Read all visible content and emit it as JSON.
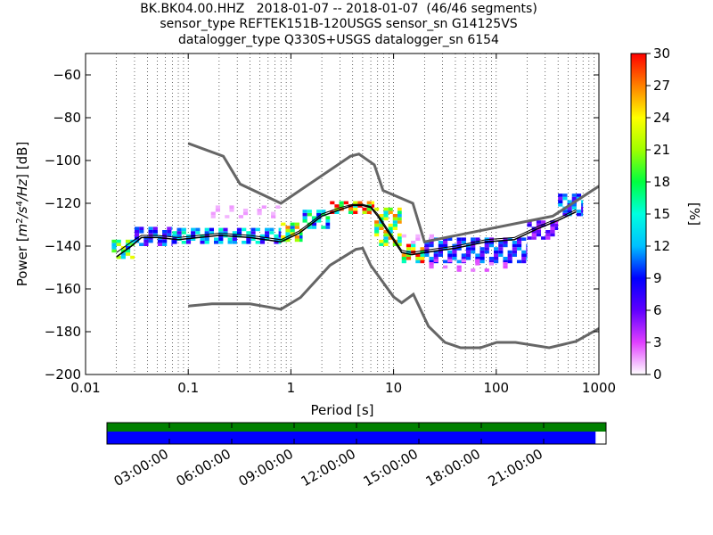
{
  "header": {
    "line1": "BK.BK04.00.HHZ   2018-01-07 -- 2018-01-07  (46/46 segments)",
    "line2": "sensor_type REFTEK151B-120USGS sensor_sn G14125VS",
    "line3": "datalogger_type Q330S+USGS datalogger_sn 6154"
  },
  "colors": {
    "noise_model": "#666666",
    "mean_line": "#000000",
    "mode_line": "#000000",
    "timeline_top": "#008000",
    "timeline_bottom": "#0000ff"
  },
  "chart_data": {
    "type": "heatmap",
    "title": "BK.BK04.00.HHZ   2018-01-07 -- 2018-01-07  (46/46 segments)",
    "xlabel": "Period [s]",
    "ylabel_parts": [
      "Power [",
      "m",
      "2",
      "/s",
      "4",
      "/",
      "Hz",
      "] [dB]"
    ],
    "x_scale": "log",
    "xlim": [
      0.01,
      1000
    ],
    "ylim": [
      -200,
      -50
    ],
    "x_ticks": [
      {
        "value": 0.01,
        "label": "0.01"
      },
      {
        "value": 0.1,
        "label": "0.1"
      },
      {
        "value": 1,
        "label": "1"
      },
      {
        "value": 10,
        "label": "10"
      },
      {
        "value": 100,
        "label": "100"
      },
      {
        "value": 1000,
        "label": "1000"
      }
    ],
    "y_ticks": [
      {
        "value": -60,
        "label": "−60"
      },
      {
        "value": -80,
        "label": "−80"
      },
      {
        "value": -100,
        "label": "−100"
      },
      {
        "value": -120,
        "label": "−120"
      },
      {
        "value": -140,
        "label": "−140"
      },
      {
        "value": -160,
        "label": "−160"
      },
      {
        "value": -180,
        "label": "−180"
      },
      {
        "value": -200,
        "label": "−200"
      }
    ],
    "grid": "vertical dotted",
    "colorbar": {
      "label": "[%]",
      "range": [
        0,
        30
      ],
      "ticks": [
        {
          "value": 0,
          "label": "0"
        },
        {
          "value": 3,
          "label": "3"
        },
        {
          "value": 6,
          "label": "6"
        },
        {
          "value": 9,
          "label": "9"
        },
        {
          "value": 12,
          "label": "12"
        },
        {
          "value": 15,
          "label": "15"
        },
        {
          "value": 18,
          "label": "18"
        },
        {
          "value": 21,
          "label": "21"
        },
        {
          "value": 24,
          "label": "24"
        },
        {
          "value": 27,
          "label": "27"
        },
        {
          "value": 30,
          "label": "30"
        }
      ]
    },
    "noise_models": [
      {
        "points": [
          [
            0.1,
            -92
          ],
          [
            0.22,
            -98
          ],
          [
            0.32,
            -111
          ],
          [
            0.8,
            -120
          ],
          [
            3.8,
            -98
          ],
          [
            4.6,
            -97
          ],
          [
            6.5,
            -102
          ],
          [
            7.9,
            -114
          ],
          [
            15.4,
            -120
          ],
          [
            20,
            -138
          ],
          [
            354.8,
            -126
          ],
          [
            1000,
            -112
          ]
        ]
      },
      {
        "points": [
          [
            0.1,
            -168
          ],
          [
            0.17,
            -167
          ],
          [
            0.4,
            -167
          ],
          [
            0.8,
            -169.5
          ],
          [
            1.24,
            -164
          ],
          [
            2.4,
            -149
          ],
          [
            4.3,
            -141.5
          ],
          [
            5,
            -141
          ],
          [
            6,
            -149
          ],
          [
            10,
            -163.7
          ],
          [
            12,
            -166.5
          ],
          [
            15.6,
            -162.5
          ],
          [
            21.9,
            -177.5
          ],
          [
            31.6,
            -185
          ],
          [
            45,
            -187.5
          ],
          [
            70,
            -187.5
          ],
          [
            101,
            -185
          ],
          [
            154,
            -185
          ],
          [
            328,
            -187.5
          ],
          [
            600,
            -184.5
          ],
          [
            1000,
            -178.5
          ]
        ]
      }
    ],
    "mode": {
      "points": [
        [
          0.02,
          -145
        ],
        [
          0.028,
          -140
        ],
        [
          0.035,
          -136
        ],
        [
          0.05,
          -136
        ],
        [
          0.08,
          -137
        ],
        [
          0.2,
          -135
        ],
        [
          0.4,
          -136
        ],
        [
          0.8,
          -138
        ],
        [
          1.2,
          -134
        ],
        [
          2,
          -126
        ],
        [
          3,
          -123
        ],
        [
          4,
          -121
        ],
        [
          5,
          -121
        ],
        [
          6,
          -122
        ],
        [
          7,
          -126
        ],
        [
          9,
          -134
        ],
        [
          12,
          -143
        ],
        [
          15,
          -144
        ],
        [
          20,
          -143
        ],
        [
          40,
          -141
        ],
        [
          80,
          -138
        ],
        [
          150,
          -137
        ],
        [
          250,
          -132
        ],
        [
          400,
          -128
        ],
        [
          600,
          -124
        ]
      ]
    },
    "mean": {
      "points": [
        [
          0.02,
          -143
        ],
        [
          0.028,
          -138
        ],
        [
          0.035,
          -135
        ],
        [
          0.05,
          -135
        ],
        [
          0.08,
          -136
        ],
        [
          0.2,
          -134
        ],
        [
          0.4,
          -135
        ],
        [
          0.8,
          -137
        ],
        [
          1.2,
          -133
        ],
        [
          2,
          -125
        ],
        [
          3,
          -122
        ],
        [
          4,
          -120.5
        ],
        [
          5,
          -120.5
        ],
        [
          6,
          -121.5
        ],
        [
          7,
          -125
        ],
        [
          9,
          -133
        ],
        [
          12,
          -142
        ],
        [
          15,
          -143
        ],
        [
          20,
          -142
        ],
        [
          40,
          -140
        ],
        [
          80,
          -137
        ],
        [
          150,
          -136
        ],
        [
          250,
          -131
        ],
        [
          400,
          -127
        ],
        [
          600,
          -123
        ]
      ]
    },
    "density_bands": [
      {
        "x_range": [
          0.018,
          0.03
        ],
        "y": [
          -146,
          -138
        ],
        "percent": 18
      },
      {
        "x_range": [
          0.03,
          0.07
        ],
        "y": [
          -140,
          -132
        ],
        "percent": 9
      },
      {
        "x_range": [
          0.07,
          0.8
        ],
        "y": [
          -139,
          -132
        ],
        "percent": 12
      },
      {
        "x_range": [
          0.8,
          1.3
        ],
        "y": [
          -138,
          -130
        ],
        "percent": 20
      },
      {
        "x_range": [
          1.3,
          2.4
        ],
        "y": [
          -132,
          -124
        ],
        "percent": 14
      },
      {
        "x_range": [
          2.4,
          6.5
        ],
        "y": [
          -125,
          -119
        ],
        "percent": 26
      },
      {
        "x_range": [
          6.5,
          12
        ],
        "y": [
          -140,
          -122
        ],
        "percent": 21
      },
      {
        "x_range": [
          12,
          20
        ],
        "y": [
          -148,
          -140
        ],
        "percent": 24
      },
      {
        "x_range": [
          20,
          200
        ],
        "y": [
          -148,
          -136
        ],
        "percent": 9
      },
      {
        "x_range": [
          200,
          400
        ],
        "y": [
          -137,
          -128
        ],
        "percent": 6
      },
      {
        "x_range": [
          400,
          700
        ],
        "y": [
          -126,
          -116
        ],
        "percent": 10
      }
    ],
    "outlier_bands": [
      {
        "x_range": [
          0.15,
          0.8
        ],
        "y": [
          -127,
          -122
        ],
        "percent": 2
      },
      {
        "x_range": [
          12,
          30
        ],
        "y": [
          -139,
          -135
        ],
        "percent": 2
      },
      {
        "x_range": [
          20,
          150
        ],
        "y": [
          -152,
          -146
        ],
        "percent": 4
      }
    ]
  },
  "timeline": {
    "tick_labels": [
      "03:00:00",
      "06:00:00",
      "09:00:00",
      "12:00:00",
      "15:00:00",
      "18:00:00",
      "21:00:00"
    ],
    "hours": [
      3,
      6,
      9,
      12,
      15,
      18,
      21
    ],
    "range_hours": [
      0,
      24
    ],
    "coverage_top_fraction": 1.0,
    "coverage_bottom_fraction": 0.979
  }
}
